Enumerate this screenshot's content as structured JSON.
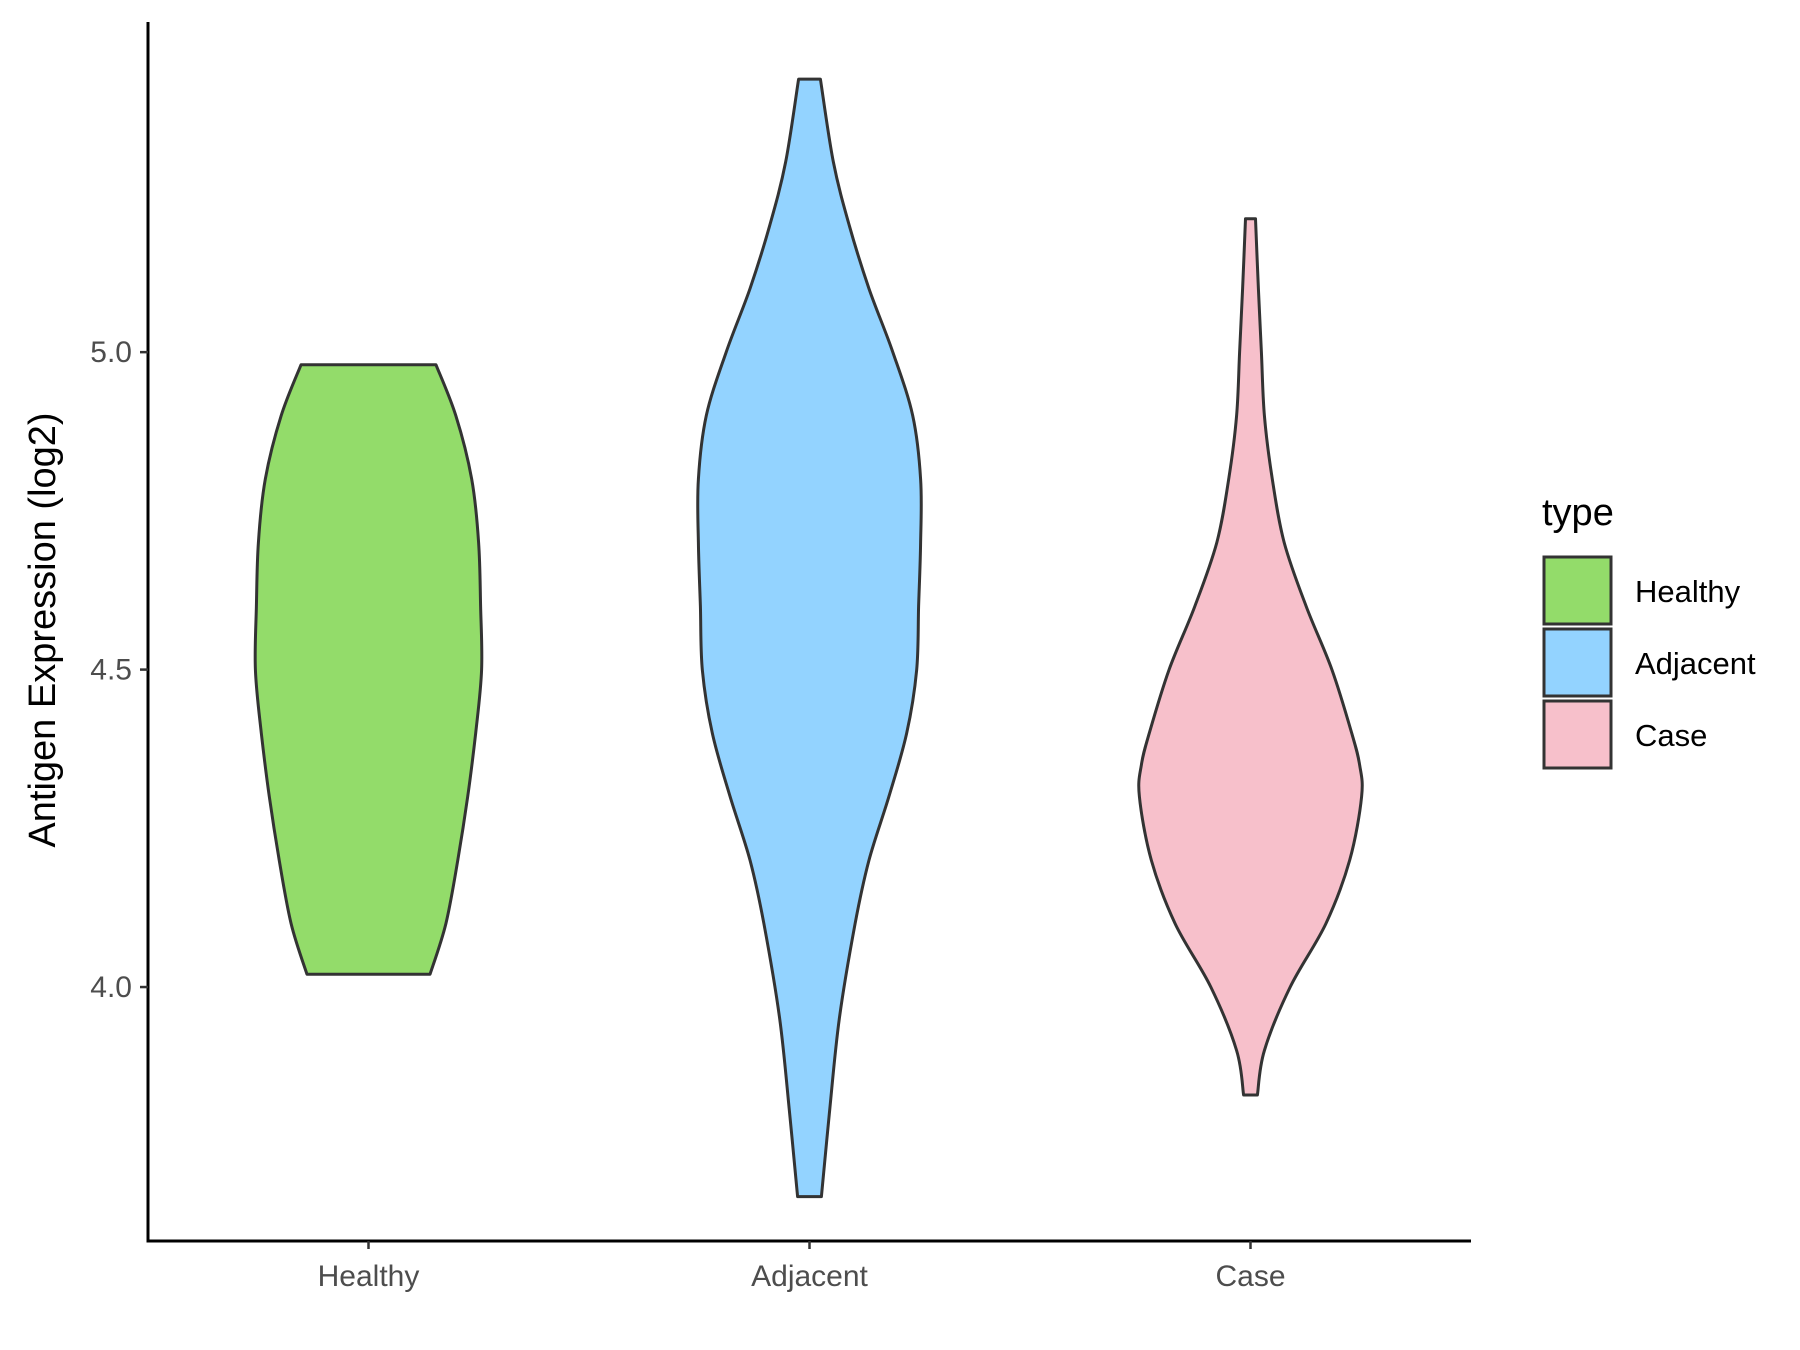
{
  "chart_data": {
    "type": "violin",
    "ylabel": "Antigen Expression (log2)",
    "xlabel": "",
    "yticks": [
      "4.0",
      "4.5",
      "5.0"
    ],
    "ylim": [
      3.6,
      5.52
    ],
    "categories": [
      "Healthy",
      "Adjacent",
      "Case"
    ],
    "legend": {
      "title": "type",
      "position": "right",
      "items": [
        "Healthy",
        "Adjacent",
        "Case"
      ]
    },
    "grid": false,
    "series": [
      {
        "name": "Healthy",
        "color": "#93dc6a",
        "min": 4.02,
        "max": 4.98,
        "profile": [
          [
            4.02,
            0.31
          ],
          [
            4.1,
            0.39
          ],
          [
            4.2,
            0.45
          ],
          [
            4.3,
            0.5
          ],
          [
            4.4,
            0.54
          ],
          [
            4.5,
            0.57
          ],
          [
            4.6,
            0.565
          ],
          [
            4.7,
            0.555
          ],
          [
            4.8,
            0.52
          ],
          [
            4.9,
            0.44
          ],
          [
            4.98,
            0.34
          ]
        ]
      },
      {
        "name": "Adjacent",
        "color": "#93d3ff",
        "min": 3.67,
        "max": 5.43,
        "profile": [
          [
            3.67,
            0.06
          ],
          [
            3.8,
            0.1
          ],
          [
            3.95,
            0.15
          ],
          [
            4.1,
            0.23
          ],
          [
            4.2,
            0.3
          ],
          [
            4.3,
            0.4
          ],
          [
            4.4,
            0.49
          ],
          [
            4.5,
            0.54
          ],
          [
            4.6,
            0.55
          ],
          [
            4.7,
            0.56
          ],
          [
            4.8,
            0.56
          ],
          [
            4.9,
            0.52
          ],
          [
            5.0,
            0.42
          ],
          [
            5.1,
            0.3
          ],
          [
            5.2,
            0.2
          ],
          [
            5.3,
            0.12
          ],
          [
            5.43,
            0.055
          ]
        ]
      },
      {
        "name": "Case",
        "color": "#f7c0cb",
        "min": 3.83,
        "max": 5.21,
        "profile": [
          [
            3.83,
            0.035
          ],
          [
            3.9,
            0.07
          ],
          [
            4.0,
            0.2
          ],
          [
            4.1,
            0.38
          ],
          [
            4.2,
            0.5
          ],
          [
            4.3,
            0.56
          ],
          [
            4.35,
            0.55
          ],
          [
            4.4,
            0.51
          ],
          [
            4.5,
            0.41
          ],
          [
            4.6,
            0.28
          ],
          [
            4.7,
            0.17
          ],
          [
            4.8,
            0.11
          ],
          [
            4.9,
            0.07
          ],
          [
            5.0,
            0.055
          ],
          [
            5.1,
            0.04
          ],
          [
            5.21,
            0.025
          ]
        ]
      }
    ]
  }
}
